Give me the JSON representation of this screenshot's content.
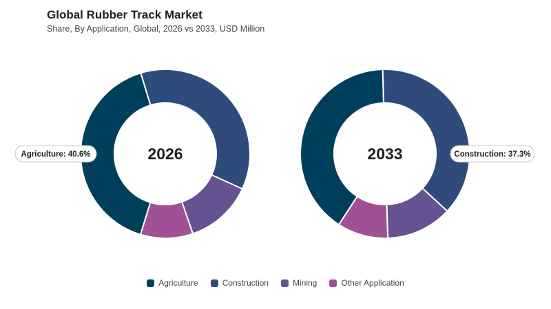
{
  "chart_data": {
    "type": "pie",
    "variant": "donut",
    "title": "Global Rubber Track Market",
    "subtitle": "Share, By Application, Global, 2026 vs 2033, USD Million",
    "categories": [
      "Agriculture",
      "Construction",
      "Mining",
      "Other Application"
    ],
    "colors": [
      "#003f5c",
      "#2f4b7c",
      "#665191",
      "#a05195"
    ],
    "charts": [
      {
        "label": "2026",
        "values": [
          40.6,
          36.5,
          12.9,
          10.0
        ],
        "callout": {
          "text": "Agriculture: 40.6%",
          "category": "Agriculture"
        }
      },
      {
        "label": "2033",
        "values": [
          40.4,
          37.3,
          12.6,
          9.7
        ],
        "callout": {
          "text": "Construction: 37.3%",
          "category": "Construction"
        }
      }
    ],
    "legend_placement": "bottom-center"
  }
}
